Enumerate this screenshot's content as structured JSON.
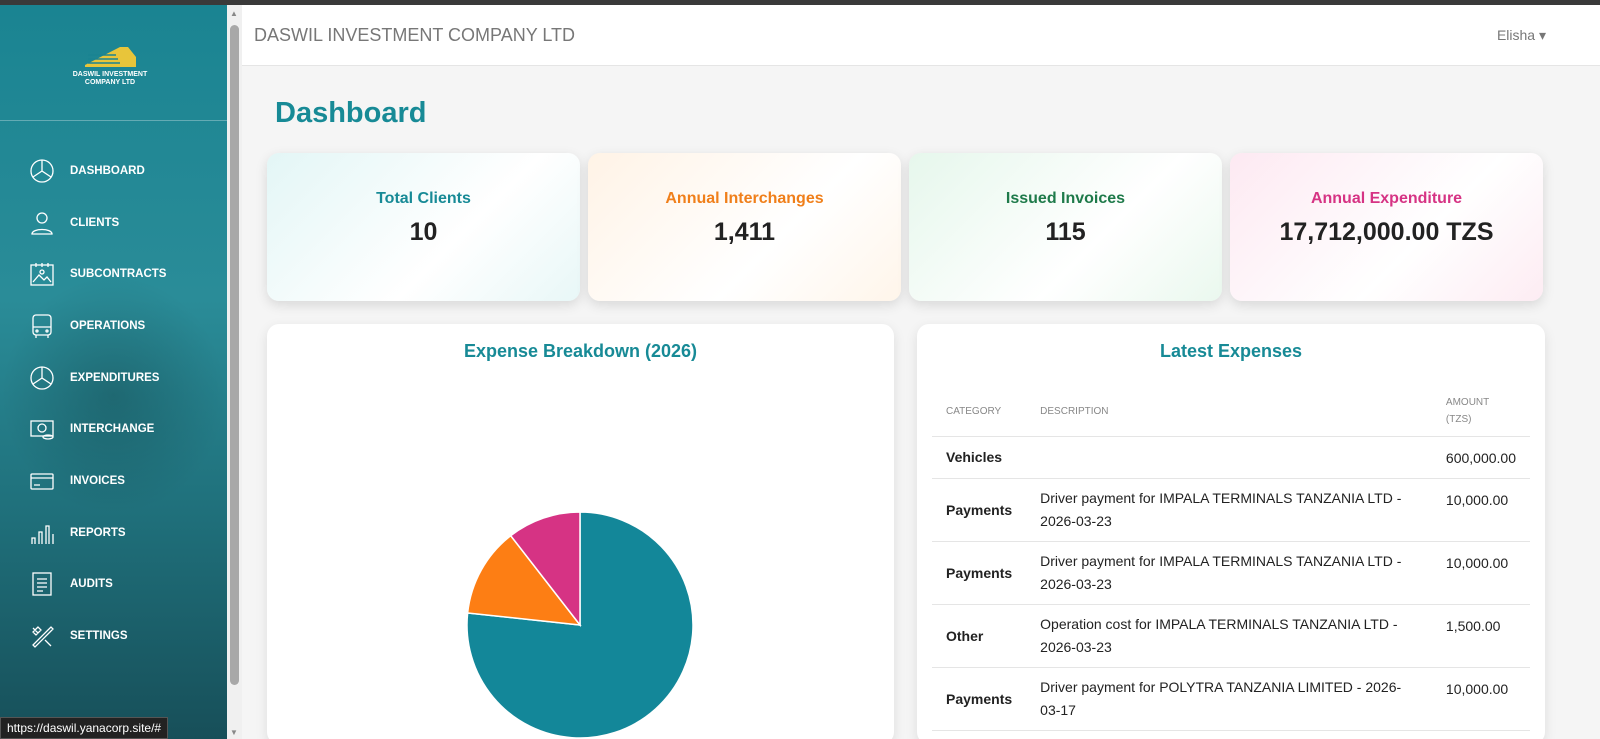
{
  "app": {
    "company": "DASWIL INVESTMENT COMPANY LTD",
    "logo_text": "DASWIL INVESTMENT COMPANY LTD",
    "user": "Elisha ▾"
  },
  "sidebar": {
    "items": [
      {
        "label": "DASHBOARD",
        "icon": "pie-chart-icon"
      },
      {
        "label": "CLIENTS",
        "icon": "user-icon"
      },
      {
        "label": "SUBCONTRACTS",
        "icon": "calendar-image-icon"
      },
      {
        "label": "OPERATIONS",
        "icon": "bus-icon"
      },
      {
        "label": "EXPENDITURES",
        "icon": "pie-chart-icon"
      },
      {
        "label": "INTERCHANGE",
        "icon": "money-icon"
      },
      {
        "label": "INVOICES",
        "icon": "card-icon"
      },
      {
        "label": "REPORTS",
        "icon": "bar-chart-icon"
      },
      {
        "label": "AUDITS",
        "icon": "document-icon"
      },
      {
        "label": "SETTINGS",
        "icon": "tools-icon"
      }
    ]
  },
  "page": {
    "title": "Dashboard"
  },
  "cards": [
    {
      "label": "Total Clients",
      "value": "10",
      "color": "#178a96"
    },
    {
      "label": "Annual Interchanges",
      "value": "1,411",
      "color": "#f07f1a"
    },
    {
      "label": "Issued Invoices",
      "value": "115",
      "color": "#1e7a4a"
    },
    {
      "label": "Annual Expenditure",
      "value": "17,712,000.00 TZS",
      "color": "#d63384"
    }
  ],
  "chart_title": "Expense Breakdown (2026)",
  "chart_data": {
    "type": "pie",
    "values": [
      76.7,
      12.8,
      10.5
    ],
    "colors": [
      "#138799",
      "#fd7e14",
      "#d63384"
    ],
    "legend": "none"
  },
  "expenses": {
    "title": "Latest Expenses",
    "headers": [
      "CATEGORY",
      "DESCRIPTION",
      "AMOUNT (TZS)"
    ],
    "rows": [
      {
        "category": "Vehicles",
        "description": "",
        "amount": "600,000.00"
      },
      {
        "category": "Payments",
        "description": "Driver payment for IMPALA TERMINALS TANZANIA LTD - 2026-03-23",
        "amount": "10,000.00"
      },
      {
        "category": "Payments",
        "description": "Driver payment for IMPALA TERMINALS TANZANIA LTD - 2026-03-23",
        "amount": "10,000.00"
      },
      {
        "category": "Other",
        "description": "Operation cost for IMPALA TERMINALS TANZANIA LTD - 2026-03-23",
        "amount": "1,500.00"
      },
      {
        "category": "Payments",
        "description": "Driver payment for POLYTRA TANZANIA LIMITED - 2026-03-17",
        "amount": "10,000.00"
      }
    ]
  },
  "status_url": "https://daswil.yanacorp.site/#"
}
